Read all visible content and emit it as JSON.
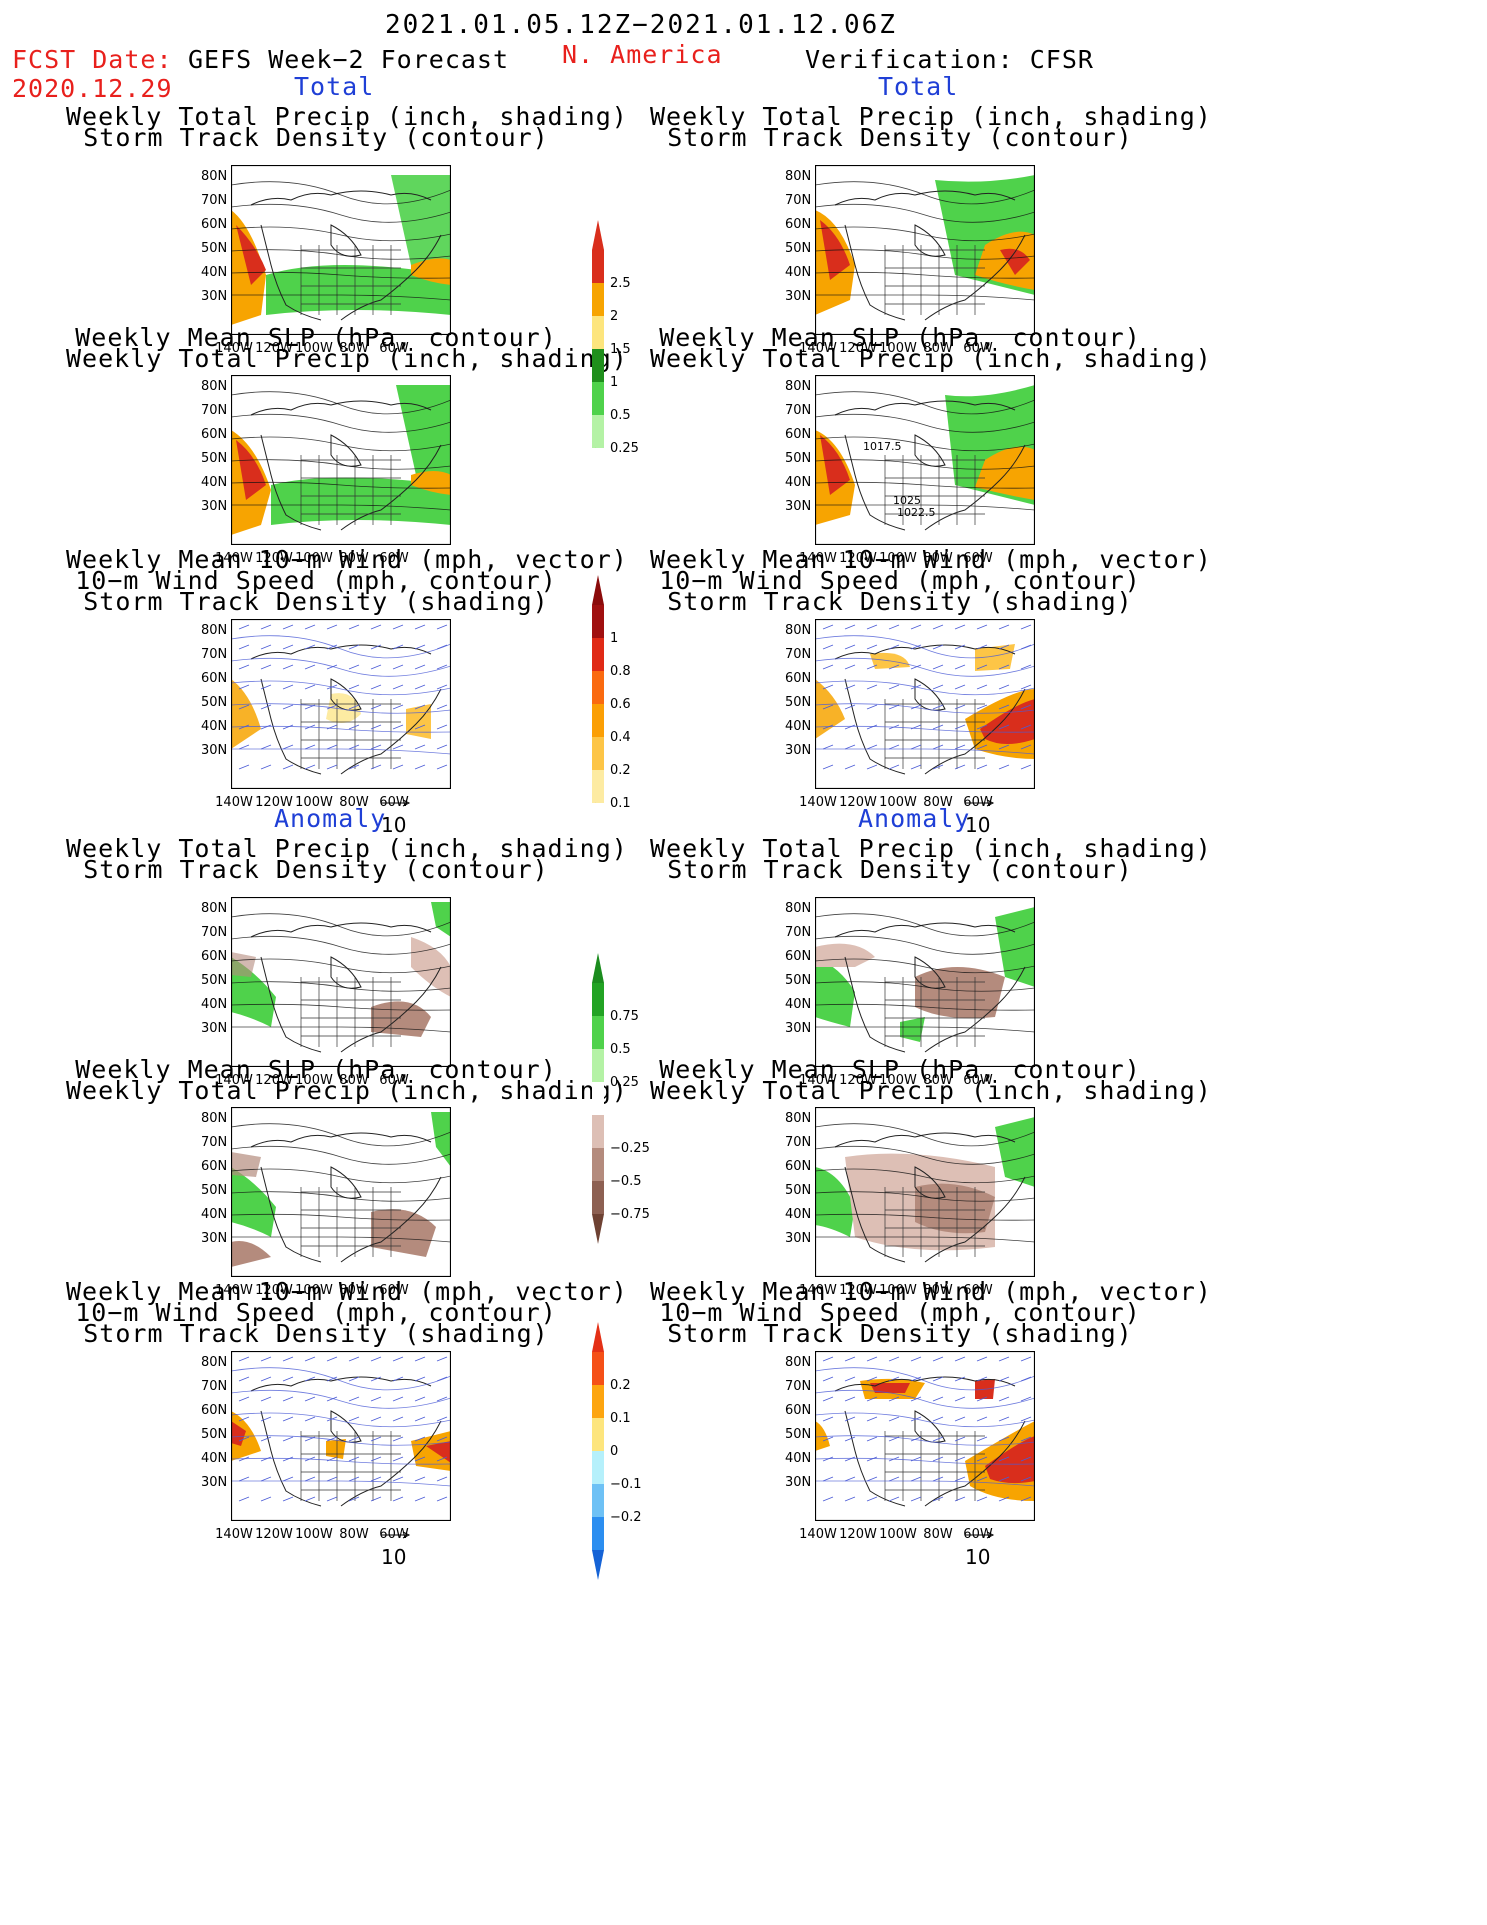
{
  "header": {
    "date_range": "2021.01.05.12Z−2021.01.12.06Z",
    "fcst_label": "FCST Date:",
    "fcst_date": "2020.12.29",
    "left_title": "GEFS Week−2 Forecast",
    "region": "N. America",
    "right_title": "Verification: CFSR"
  },
  "sections": {
    "total": "Total",
    "anomaly": "Anomaly"
  },
  "panel_titles": {
    "precip_track": [
      "Weekly Total Precip (inch, shading)",
      "Storm Track Density (contour)"
    ],
    "slp_precip": [
      "Weekly Mean SLP (hPa, contour)",
      "Weekly Total Precip (inch, shading)"
    ],
    "wind_track": [
      "Weekly Mean 10−m Wind (mph, vector)",
      "10−m Wind Speed (mph, contour)",
      "Storm Track Density (shading)"
    ]
  },
  "axes": {
    "lat_labels": [
      "80N",
      "70N",
      "60N",
      "50N",
      "40N",
      "30N"
    ],
    "lon_labels": [
      "140W",
      "120W",
      "100W",
      "80W",
      "60W"
    ]
  },
  "contour_labels": [
    "1017.5",
    "1025",
    "1022.5"
  ],
  "vector_ref": "10",
  "colorbars": [
    {
      "labels": [
        "2.5",
        "2",
        "1.5",
        "1",
        "0.5",
        "0.25"
      ],
      "colors": [
        "#d92e1c",
        "#f7a401",
        "#fde57d",
        "#1f8f1c",
        "#4fd24b",
        "#b4f2a5"
      ],
      "cap_top": "#d92e1c"
    },
    {
      "labels": [
        "1",
        "0.8",
        "0.6",
        "0.4",
        "0.2",
        "0.1"
      ],
      "colors": [
        "#a01010",
        "#e02a16",
        "#fa6a10",
        "#fb9f05",
        "#fdc546",
        "#fdeba2"
      ],
      "cap_top": "#8b0b0b"
    },
    {
      "labels": [
        "0.75",
        "0.5",
        "0.25",
        "−0.25",
        "−0.5",
        "−0.75"
      ],
      "colors": [
        "#22a324",
        "#4fd24b",
        "#b4f2a5",
        "#ffffff",
        "#ddbfb5",
        "#b48b7d",
        "#8d6052"
      ],
      "cap_top": "#1b8c1e",
      "cap_bottom": "#6e4233"
    },
    {
      "labels": [
        "0.2",
        "0.1",
        "0",
        "−0.1",
        "−0.2"
      ],
      "colors": [
        "#f55017",
        "#fda50f",
        "#fde57d",
        "#b5f0fb",
        "#6ec1f5",
        "#2b8ef0"
      ],
      "cap_top": "#e43016",
      "cap_bottom": "#1563d6"
    }
  ],
  "colors": {
    "precip_green": "#4fd24b",
    "precip_dark_green": "#1f8f1c",
    "orange": "#f7a401",
    "red": "#d92e1c",
    "brown": "#b48b7d",
    "vector_blue": "#4b5bd6"
  }
}
